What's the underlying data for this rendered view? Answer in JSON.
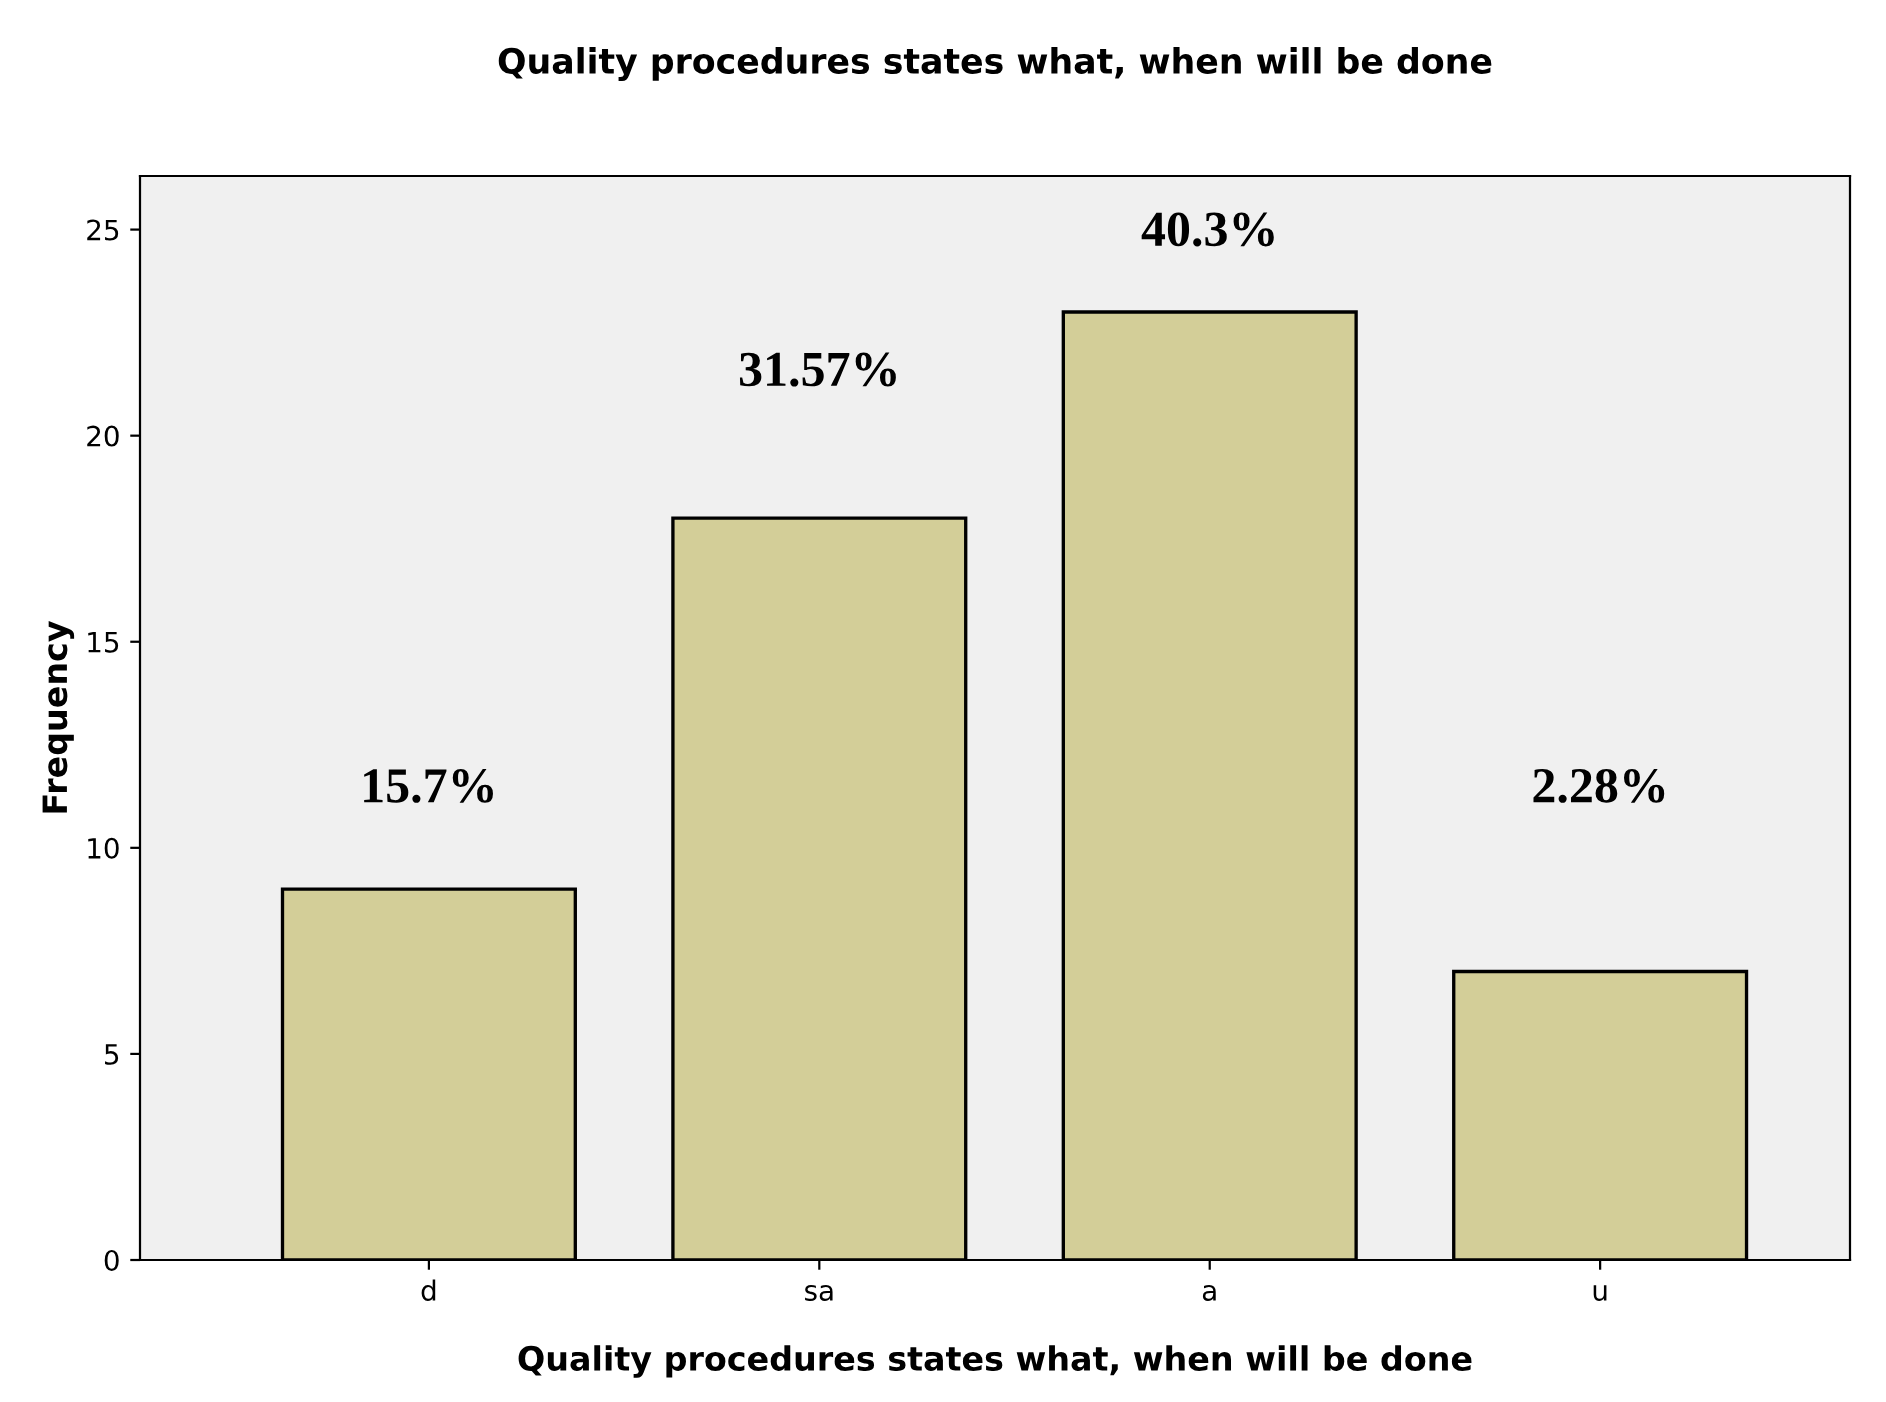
{
  "chart_data": {
    "type": "bar",
    "title": "Quality procedures states what, when will be done",
    "xlabel": "Quality procedures states what, when will be done",
    "ylabel": "Frequency",
    "categories": [
      "d",
      "sa",
      "a",
      "u"
    ],
    "values": [
      9,
      18,
      23,
      7
    ],
    "annotations": [
      "15.7%",
      "31.57%",
      "40.3%",
      "2.28%"
    ],
    "color": "#d3ce98",
    "ylim": [
      0,
      26.3
    ],
    "yticks": [
      0,
      5,
      10,
      15,
      20,
      25
    ],
    "grid": false
  }
}
